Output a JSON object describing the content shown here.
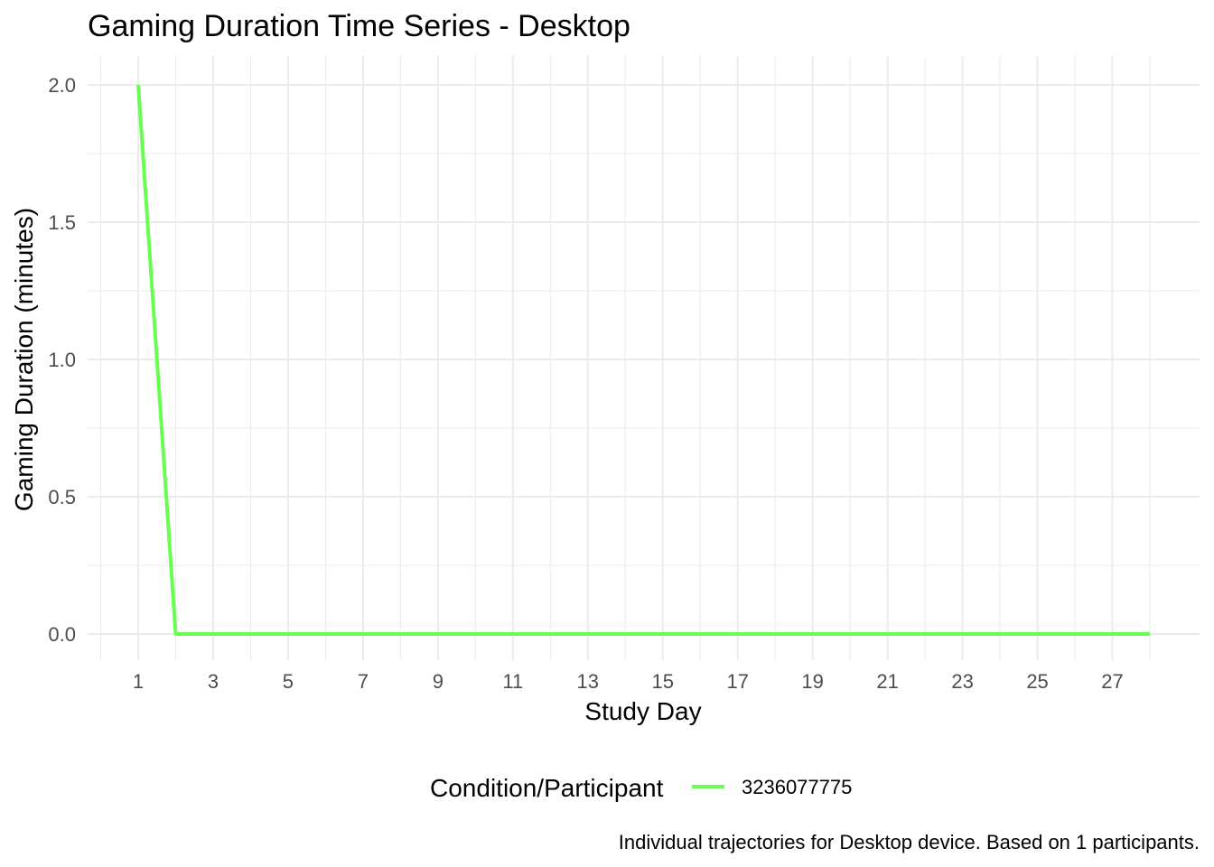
{
  "chart_data": {
    "type": "line",
    "title": "Gaming Duration Time Series - Desktop",
    "xlabel": "Study Day",
    "ylabel": "Gaming Duration (minutes)",
    "caption": "Individual trajectories for Desktop device. Based on 1 participants.",
    "legend": {
      "title": "Condition/Participant",
      "position": "bottom"
    },
    "xlim": [
      1,
      28
    ],
    "ylim": [
      0,
      2
    ],
    "x_ticks": [
      1,
      3,
      5,
      7,
      9,
      11,
      13,
      15,
      17,
      19,
      21,
      23,
      25,
      27
    ],
    "y_ticks": [
      "0.0",
      "0.5",
      "1.0",
      "1.5",
      "2.0"
    ],
    "grid": true,
    "series": [
      {
        "name": "3236077775",
        "color": "#66ff4d",
        "x": [
          1,
          2,
          3,
          4,
          5,
          6,
          7,
          8,
          9,
          10,
          11,
          12,
          13,
          14,
          15,
          16,
          17,
          18,
          19,
          20,
          21,
          22,
          23,
          24,
          25,
          26,
          27,
          28
        ],
        "y": [
          2,
          0,
          0,
          0,
          0,
          0,
          0,
          0,
          0,
          0,
          0,
          0,
          0,
          0,
          0,
          0,
          0,
          0,
          0,
          0,
          0,
          0,
          0,
          0,
          0,
          0,
          0,
          0
        ]
      }
    ]
  }
}
